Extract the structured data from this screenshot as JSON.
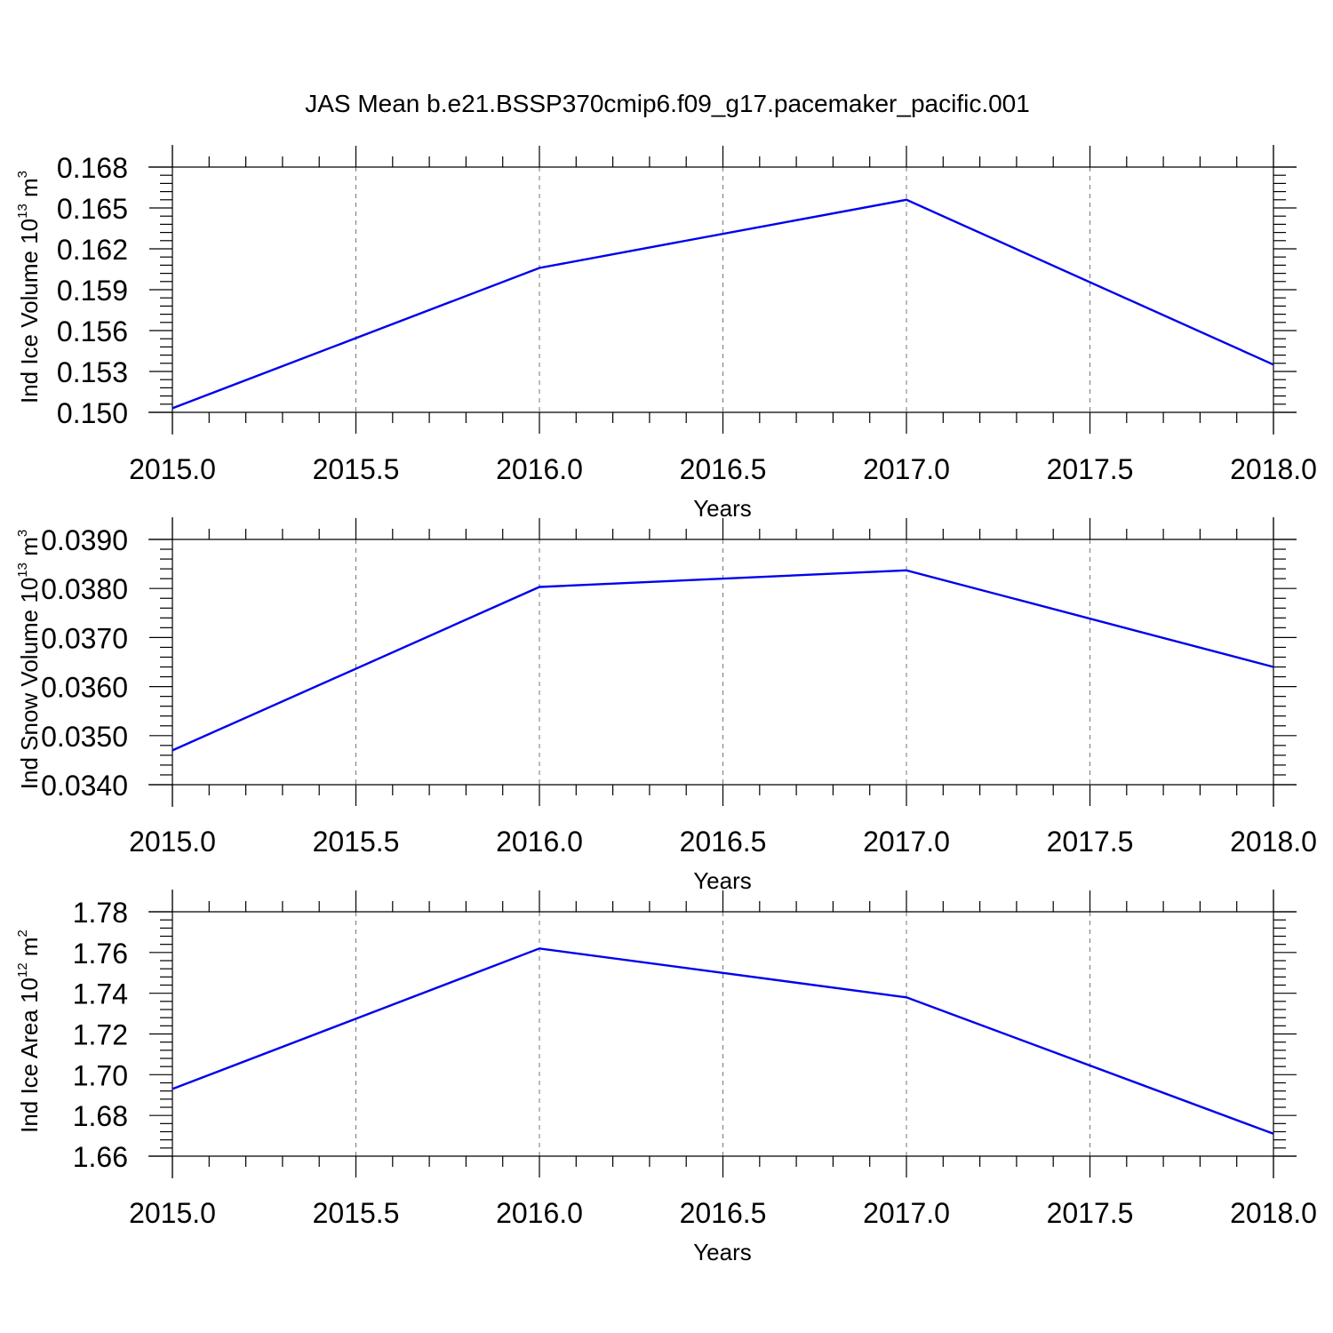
{
  "title": "JAS Mean b.e21.BSSP370cmip6.f09_g17.pacemaker_pacific.001",
  "colors": {
    "line": "#0000ee",
    "axis": "#000000",
    "grid": "#777777"
  },
  "chart_data": [
    {
      "type": "line",
      "ylabel_main": "Ind Ice Volume 10",
      "ylabel_exp": "13",
      "ylabel_unit": " m",
      "ylabel_unit_exp": "3",
      "xlabel": "Years",
      "xlim": [
        2015.0,
        2018.0
      ],
      "ylim": [
        0.15,
        0.168
      ],
      "x_ticks": [
        "2015.0",
        "2015.5",
        "2016.0",
        "2016.5",
        "2017.0",
        "2017.5",
        "2018.0"
      ],
      "y_ticks": [
        "0.150",
        "0.153",
        "0.156",
        "0.159",
        "0.162",
        "0.165",
        "0.168"
      ],
      "grid": "vertical dashed at major x ticks",
      "x": [
        2015,
        2016,
        2017,
        2018
      ],
      "y": [
        0.1503,
        0.1606,
        0.1656,
        0.1535
      ]
    },
    {
      "type": "line",
      "ylabel_main": "Ind Snow Volume 10",
      "ylabel_exp": "13",
      "ylabel_unit": " m",
      "ylabel_unit_exp": "3",
      "xlabel": "Years",
      "xlim": [
        2015.0,
        2018.0
      ],
      "ylim": [
        0.034,
        0.039
      ],
      "x_ticks": [
        "2015.0",
        "2015.5",
        "2016.0",
        "2016.5",
        "2017.0",
        "2017.5",
        "2018.0"
      ],
      "y_ticks": [
        "0.0340",
        "0.0350",
        "0.0360",
        "0.0370",
        "0.0380",
        "0.0390"
      ],
      "grid": "vertical dashed at major x ticks",
      "x": [
        2015,
        2016,
        2017,
        2018
      ],
      "y": [
        0.0347,
        0.03803,
        0.03837,
        0.0364
      ]
    },
    {
      "type": "line",
      "ylabel_main": "Ind Ice Area 10",
      "ylabel_exp": "12",
      "ylabel_unit": " m",
      "ylabel_unit_exp": "2",
      "xlabel": "Years",
      "xlim": [
        2015.0,
        2018.0
      ],
      "ylim": [
        1.66,
        1.78
      ],
      "x_ticks": [
        "2015.0",
        "2015.5",
        "2016.0",
        "2016.5",
        "2017.0",
        "2017.5",
        "2018.0"
      ],
      "y_ticks": [
        "1.66",
        "1.68",
        "1.70",
        "1.72",
        "1.74",
        "1.76",
        "1.78"
      ],
      "grid": "vertical dashed at major x ticks",
      "x": [
        2015,
        2016,
        2017,
        2018
      ],
      "y": [
        1.693,
        1.762,
        1.738,
        1.671
      ]
    }
  ]
}
